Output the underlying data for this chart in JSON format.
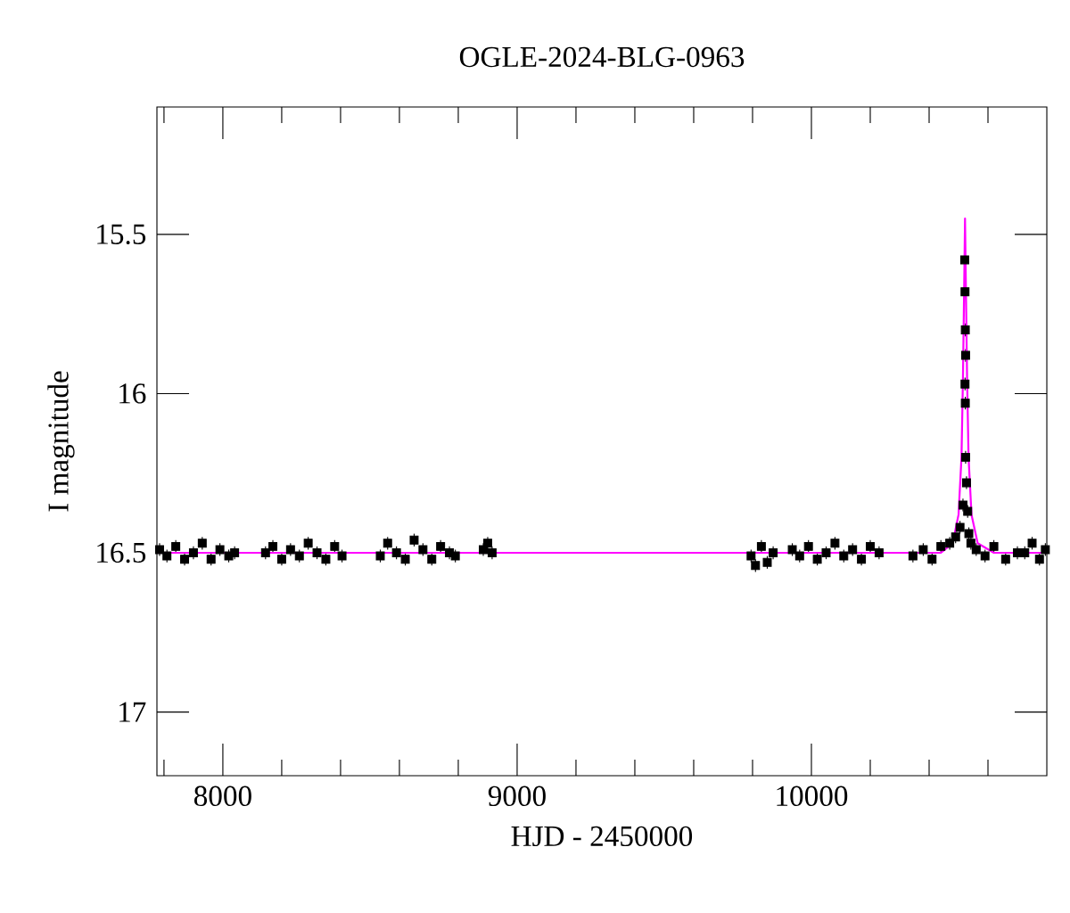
{
  "chart_data": {
    "type": "scatter",
    "title": "OGLE-2024-BLG-0963",
    "xlabel": "HJD - 2450000",
    "ylabel": "I magnitude",
    "xlim": [
      7776,
      10800
    ],
    "ylim": [
      17.2,
      15.1
    ],
    "xticks": [
      {
        "value": 7800,
        "label": null
      },
      8000,
      {
        "value": 8200,
        "label": null
      },
      {
        "value": 8400,
        "label": null
      },
      {
        "value": 8600,
        "label": null
      },
      {
        "value": 8800,
        "label": null
      },
      9000,
      {
        "value": 9200,
        "label": null
      },
      {
        "value": 9400,
        "label": null
      },
      {
        "value": 9600,
        "label": null
      },
      {
        "value": 9800,
        "label": null
      },
      10000,
      {
        "value": 10200,
        "label": null
      },
      {
        "value": 10400,
        "label": null
      },
      {
        "value": 10600,
        "label": null
      }
    ],
    "yticks": [
      15.5,
      16,
      16.5,
      17
    ],
    "grid": false,
    "marker": "square",
    "series": [
      {
        "color": "#000000",
        "x": [
          7785,
          7810,
          7840,
          7870,
          7900,
          7930,
          7960,
          7990,
          8020,
          8040,
          8145,
          8170,
          8200,
          8230,
          8260,
          8290,
          8320,
          8350,
          8380,
          8405,
          8535,
          8560,
          8590,
          8620,
          8650,
          8680,
          8710,
          8740,
          8770,
          8790,
          8885,
          8900,
          8915,
          9795,
          9810,
          9830,
          9850,
          9870,
          9935,
          9960,
          9990,
          10020,
          10050,
          10080,
          10110,
          10140,
          10170,
          10200,
          10230,
          10345,
          10380,
          10410,
          10440,
          10470,
          10490,
          10505,
          10515,
          10521,
          10522,
          10523,
          10524,
          10522,
          10523,
          10524,
          10527,
          10531,
          10535,
          10542,
          10560,
          10590,
          10620,
          10660,
          10700,
          10725,
          10750,
          10775,
          10795
        ],
        "values": [
          16.49,
          16.51,
          16.48,
          16.52,
          16.5,
          16.47,
          16.52,
          16.49,
          16.51,
          16.5,
          16.5,
          16.48,
          16.52,
          16.49,
          16.51,
          16.47,
          16.5,
          16.52,
          16.48,
          16.51,
          16.51,
          16.47,
          16.5,
          16.52,
          16.46,
          16.49,
          16.52,
          16.48,
          16.5,
          16.51,
          16.49,
          16.47,
          16.5,
          16.51,
          16.54,
          16.48,
          16.53,
          16.5,
          16.49,
          16.51,
          16.48,
          16.52,
          16.5,
          16.47,
          16.51,
          16.49,
          16.52,
          16.48,
          16.5,
          16.51,
          16.49,
          16.52,
          16.48,
          16.47,
          16.45,
          16.42,
          16.35,
          15.58,
          15.68,
          15.8,
          15.88,
          15.97,
          16.03,
          16.2,
          16.28,
          16.37,
          16.44,
          16.47,
          16.49,
          16.51,
          16.48,
          16.52,
          16.5,
          16.5,
          16.47,
          16.52,
          16.49
        ],
        "errors": [
          0.02,
          0.02,
          0.02,
          0.02,
          0.02,
          0.02,
          0.02,
          0.02,
          0.02,
          0.02,
          0.02,
          0.02,
          0.02,
          0.02,
          0.02,
          0.02,
          0.02,
          0.02,
          0.02,
          0.02,
          0.02,
          0.02,
          0.02,
          0.02,
          0.02,
          0.02,
          0.02,
          0.02,
          0.02,
          0.02,
          0.02,
          0.02,
          0.02,
          0.02,
          0.02,
          0.02,
          0.02,
          0.02,
          0.02,
          0.02,
          0.02,
          0.02,
          0.02,
          0.02,
          0.02,
          0.02,
          0.02,
          0.02,
          0.02,
          0.02,
          0.02,
          0.02,
          0.02,
          0.02,
          0.02,
          0.02,
          0.02,
          0.02,
          0.02,
          0.02,
          0.02,
          0.02,
          0.02,
          0.02,
          0.02,
          0.02,
          0.02,
          0.02,
          0.02,
          0.02,
          0.02,
          0.02,
          0.02,
          0.02,
          0.02,
          0.02,
          0.02
        ]
      },
      {
        "type": "line",
        "marker": "none",
        "color": "#ff00ff",
        "x": [
          7776,
          10440,
          10480,
          10500,
          10510,
          10515,
          10520,
          10522,
          10524,
          10529,
          10534,
          10544,
          10565,
          10620,
          10800
        ],
        "values": [
          16.5,
          16.5,
          16.47,
          16.38,
          16.2,
          15.95,
          15.6,
          15.45,
          15.6,
          15.95,
          16.2,
          16.38,
          16.47,
          16.5,
          16.5
        ]
      }
    ]
  }
}
